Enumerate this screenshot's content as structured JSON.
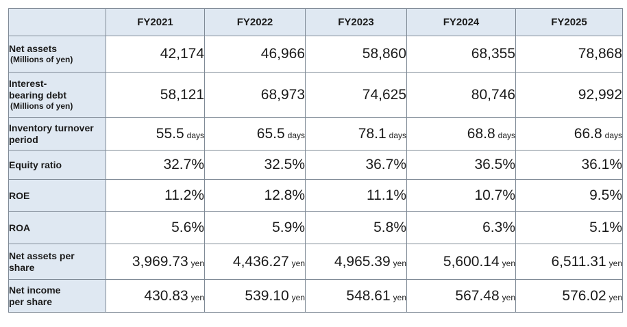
{
  "table": {
    "headers": [
      "FY2021",
      "FY2022",
      "FY2023",
      "FY2024",
      "FY2025"
    ],
    "rows": [
      {
        "label": "Net assets",
        "label_sub": "(Millions of yen)",
        "values": [
          "42,174",
          "46,966",
          "58,860",
          "68,355",
          "78,868"
        ],
        "unit": ""
      },
      {
        "label": "Interest-bearing debt",
        "label_sub": "(Millions of yen)",
        "values": [
          "58,121",
          "68,973",
          "74,625",
          "80,746",
          "92,992"
        ],
        "unit": ""
      },
      {
        "label": "Inventory turnover period",
        "label_sub": "",
        "values": [
          "55.5",
          "65.5",
          "78.1",
          "68.8",
          "66.8"
        ],
        "unit": "days"
      },
      {
        "label": "Equity ratio",
        "label_sub": "",
        "values": [
          "32.7%",
          "32.5%",
          "36.7%",
          "36.5%",
          "36.1%"
        ],
        "unit": ""
      },
      {
        "label": "ROE",
        "label_sub": "",
        "values": [
          "11.2%",
          "12.8%",
          "11.1%",
          "10.7%",
          "9.5%"
        ],
        "unit": ""
      },
      {
        "label": "ROA",
        "label_sub": "",
        "values": [
          "5.6%",
          "5.9%",
          "5.8%",
          "6.3%",
          "5.1%"
        ],
        "unit": ""
      },
      {
        "label": "Net assets per share",
        "label_sub": "",
        "values": [
          "3,969.73",
          "4,436.27",
          "4,965.39",
          "5,600.14",
          "6,511.31"
        ],
        "unit": "yen"
      },
      {
        "label": "Net income per share",
        "label_sub": "",
        "values": [
          "430.83",
          "539.10",
          "548.61",
          "567.48",
          "576.02"
        ],
        "unit": "yen"
      }
    ]
  }
}
